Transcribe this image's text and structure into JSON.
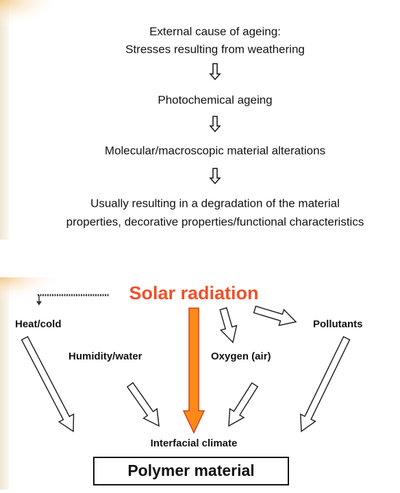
{
  "top": {
    "lines": [
      "External cause of ageing:",
      "Stresses resulting from weathering",
      "Photochemical ageing",
      "Molecular/macroscopic material alterations",
      "Usually resulting in a degradation of the material",
      "properties, decorative properties/functional characteristics"
    ]
  },
  "bottom": {
    "source": "Solar radiation",
    "factors": [
      "Heat/cold",
      "Pollutants",
      "Humidity/water",
      "Oxygen (air)"
    ],
    "interface": "Interfacial climate",
    "material": "Polymer material"
  }
}
